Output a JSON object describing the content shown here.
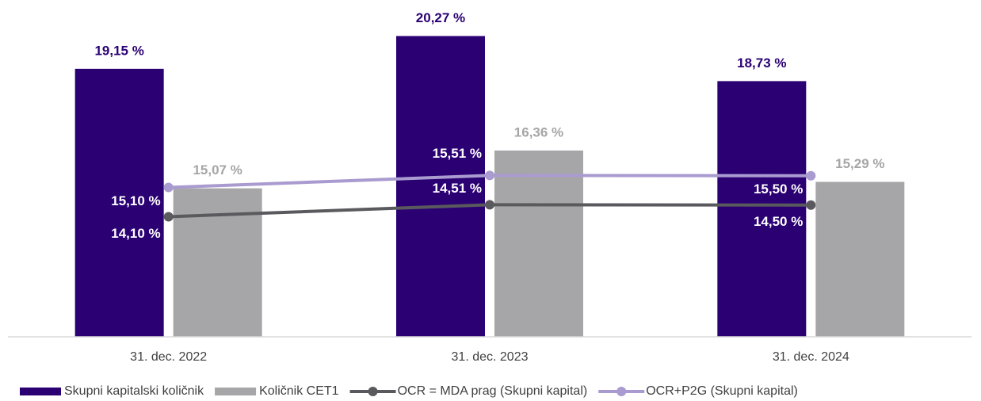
{
  "chart_data": {
    "type": "bar_line",
    "categories": [
      "31. dec. 2022",
      "31. dec. 2023",
      "31. dec. 2024"
    ],
    "ylim": [
      10,
      21.5
    ],
    "series": [
      {
        "name": "Skupni kapitalski količnik",
        "type": "bar",
        "color": "#2a0073",
        "values": [
          19.15,
          20.27,
          18.73
        ],
        "value_labels": [
          "19,15 %",
          "20,27 %",
          "18,73 %"
        ]
      },
      {
        "name": "Količnik CET1",
        "type": "bar",
        "color": "#a6a6a8",
        "values": [
          15.07,
          16.36,
          15.29
        ],
        "value_labels": [
          "15,07 %",
          "16,36 %",
          "15,29 %"
        ]
      },
      {
        "name": "OCR = MDA prag (Skupni kapital)",
        "type": "line",
        "color": "#5a5a5e",
        "values": [
          14.1,
          14.51,
          14.5
        ],
        "value_labels": [
          "14,10 %",
          "14,51 %",
          "14,50 %"
        ]
      },
      {
        "name": "OCR+P2G (Skupni kapital)",
        "type": "line",
        "color": "#a99bd0",
        "values": [
          15.1,
          15.51,
          15.5
        ],
        "value_labels": [
          "15,10 %",
          "15,51 %",
          "15,50 %"
        ]
      }
    ]
  }
}
